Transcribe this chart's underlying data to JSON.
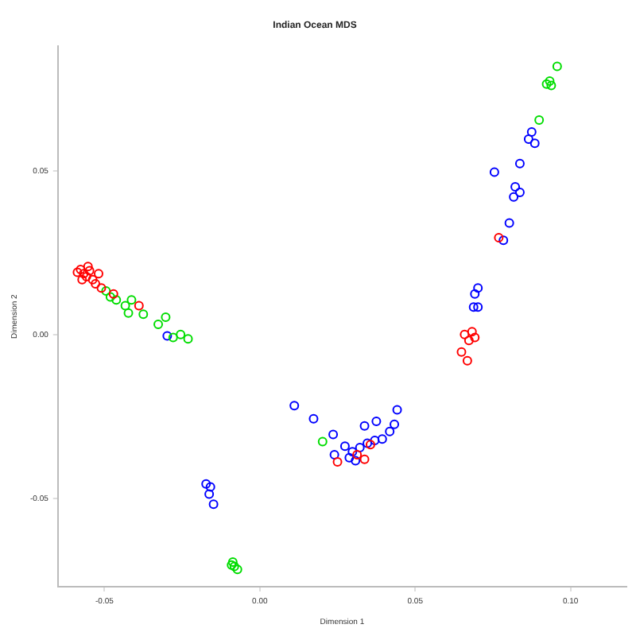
{
  "chart_data": {
    "type": "scatter",
    "title": "Indian Ocean MDS",
    "xlabel": "Dimension 1",
    "ylabel": "Dimension 2",
    "xlim": [
      -0.065,
      0.118
    ],
    "ylim": [
      -0.077,
      0.088
    ],
    "xticks": [
      {
        "value": -0.05,
        "label": "-0.05"
      },
      {
        "value": 0,
        "label": "0.00"
      },
      {
        "value": 0.05,
        "label": "0.05"
      },
      {
        "value": 0.1,
        "label": "0.10"
      }
    ],
    "yticks": [
      {
        "value": -0.05,
        "label": "-0.05"
      },
      {
        "value": 0,
        "label": "0.00"
      },
      {
        "value": 0.05,
        "label": "0.05"
      }
    ],
    "grid": false,
    "marker": "circle",
    "series": [
      {
        "color": "#ff0000",
        "x": [
          -0.0577,
          -0.0567,
          -0.0558,
          -0.0587,
          -0.0548,
          -0.0572,
          -0.0538,
          -0.0519,
          -0.051,
          -0.0529,
          -0.0553,
          -0.0471,
          -0.0389,
          0.0659,
          0.0673,
          0.0692,
          0.0683,
          0.0649,
          0.0668,
          0.0769,
          0.0313,
          0.0337,
          0.025,
          0.0356
        ],
        "values": [
          0.0199,
          0.0186,
          0.0177,
          0.019,
          0.0195,
          0.0168,
          0.0168,
          0.0186,
          0.0142,
          0.0155,
          0.0208,
          0.0124,
          0.0088,
          0.0,
          -0.0018,
          -0.0009,
          0.0009,
          -0.0053,
          -0.008,
          0.0296,
          -0.0367,
          -0.0381,
          -0.0389,
          -0.0336
        ]
      },
      {
        "color": "#00dd00",
        "x": [
          -0.0495,
          -0.0481,
          -0.0462,
          -0.0433,
          -0.0413,
          -0.0423,
          -0.0375,
          -0.0327,
          -0.0303,
          -0.0279,
          -0.0255,
          -0.0231,
          -0.0087,
          -0.0082,
          -0.0072,
          -0.0091,
          0.0933,
          0.0938,
          0.0923,
          0.0957,
          0.0899,
          0.0202
        ],
        "values": [
          0.0133,
          0.0115,
          0.0106,
          0.0088,
          0.0106,
          0.0066,
          0.0062,
          0.0031,
          0.0053,
          -0.0009,
          0.0,
          -0.0013,
          -0.0695,
          -0.0708,
          -0.0717,
          -0.0704,
          0.0774,
          0.0761,
          0.0765,
          0.0819,
          0.0655,
          -0.0327
        ]
      },
      {
        "color": "#0000ff",
        "x": [
          -0.0298,
          -0.0159,
          -0.0163,
          -0.0149,
          -0.0173,
          0.0111,
          0.0173,
          0.0236,
          0.0274,
          0.0298,
          0.0322,
          0.0346,
          0.037,
          0.0394,
          0.0288,
          0.024,
          0.0418,
          0.0433,
          0.0375,
          0.0442,
          0.0337,
          0.0308,
          0.0875,
          0.0865,
          0.0885,
          0.0837,
          0.0755,
          0.0822,
          0.0837,
          0.0817,
          0.0803,
          0.0784,
          0.0702,
          0.0692,
          0.0688,
          0.0702
        ],
        "values": [
          -0.0004,
          -0.0465,
          -0.0487,
          -0.0518,
          -0.0456,
          -0.0217,
          -0.0257,
          -0.0305,
          -0.0341,
          -0.0358,
          -0.0345,
          -0.0332,
          -0.0323,
          -0.0319,
          -0.0376,
          -0.0367,
          -0.0296,
          -0.0274,
          -0.0265,
          -0.023,
          -0.0279,
          -0.0385,
          0.0619,
          0.0597,
          0.0584,
          0.0522,
          0.0496,
          0.0451,
          0.0434,
          0.042,
          0.0341,
          0.0288,
          0.0142,
          0.0124,
          0.0084,
          0.0084
        ]
      }
    ]
  }
}
